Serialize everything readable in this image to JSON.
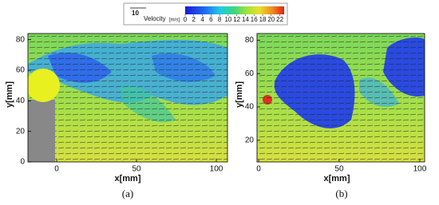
{
  "chart_data": [
    {
      "type": "colorbar",
      "title": "Velocity",
      "unit": "[m/s]",
      "reference_vector": 10,
      "xlim": [
        0,
        23
      ],
      "xticks": [
        0,
        2,
        4,
        6,
        8,
        10,
        12,
        14,
        16,
        18,
        20,
        22
      ]
    },
    {
      "type": "vector-field",
      "caption": "(a)",
      "xlabel": "x[mm]",
      "ylabel": "y[mm]",
      "xlim": [
        -18,
        107
      ],
      "ylim": [
        0,
        84
      ],
      "xticks": [
        0,
        50,
        100
      ],
      "yticks": [
        0,
        20,
        40,
        60,
        80
      ]
    },
    {
      "type": "vector-field",
      "caption": "(b)",
      "xlabel": "x[mm]",
      "ylabel": "y[mm]",
      "xlim": [
        -1,
        103
      ],
      "ylim": [
        7,
        84
      ],
      "xticks": [
        0,
        50,
        100
      ],
      "yticks": [
        20,
        40,
        60,
        80
      ]
    }
  ]
}
